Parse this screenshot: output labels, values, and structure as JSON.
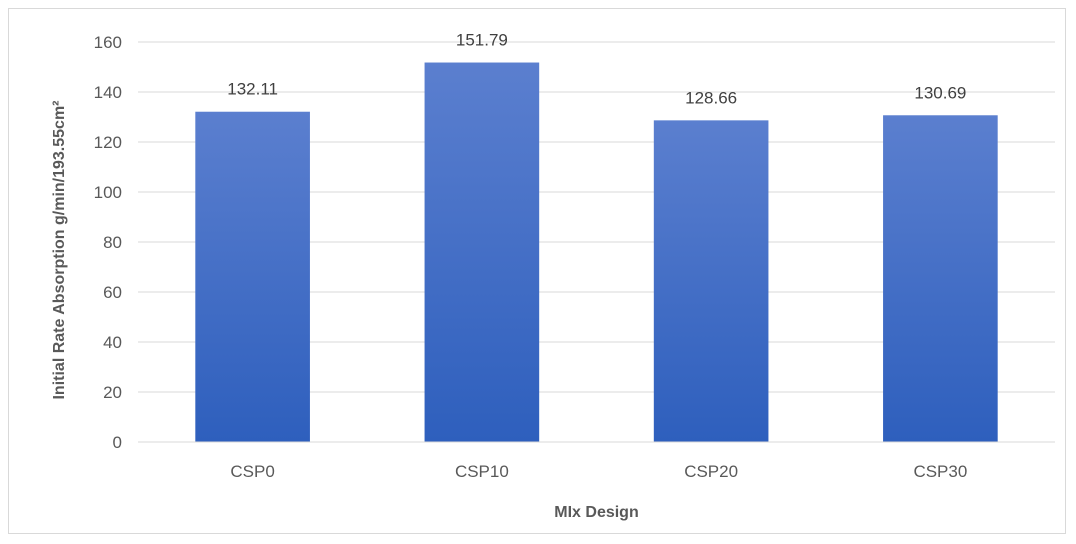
{
  "chart_data": {
    "type": "bar",
    "categories": [
      "CSP0",
      "CSP10",
      "CSP20",
      "CSP30"
    ],
    "values": [
      132.11,
      151.79,
      128.66,
      130.69
    ],
    "data_labels": [
      "132.11",
      "151.79",
      "128.66",
      "130.69"
    ],
    "title": "",
    "xlabel": "MIx Design",
    "ylabel": "Initial Rate Absorption g/min/193.55cm²",
    "ylim": [
      0,
      160
    ],
    "yticks": [
      "0",
      "20",
      "40",
      "60",
      "80",
      "100",
      "120",
      "140",
      "160"
    ],
    "grid": true,
    "legend": "none",
    "bar_color_top": "#5b7fcf",
    "bar_color_bottom": "#2e5fbd"
  }
}
